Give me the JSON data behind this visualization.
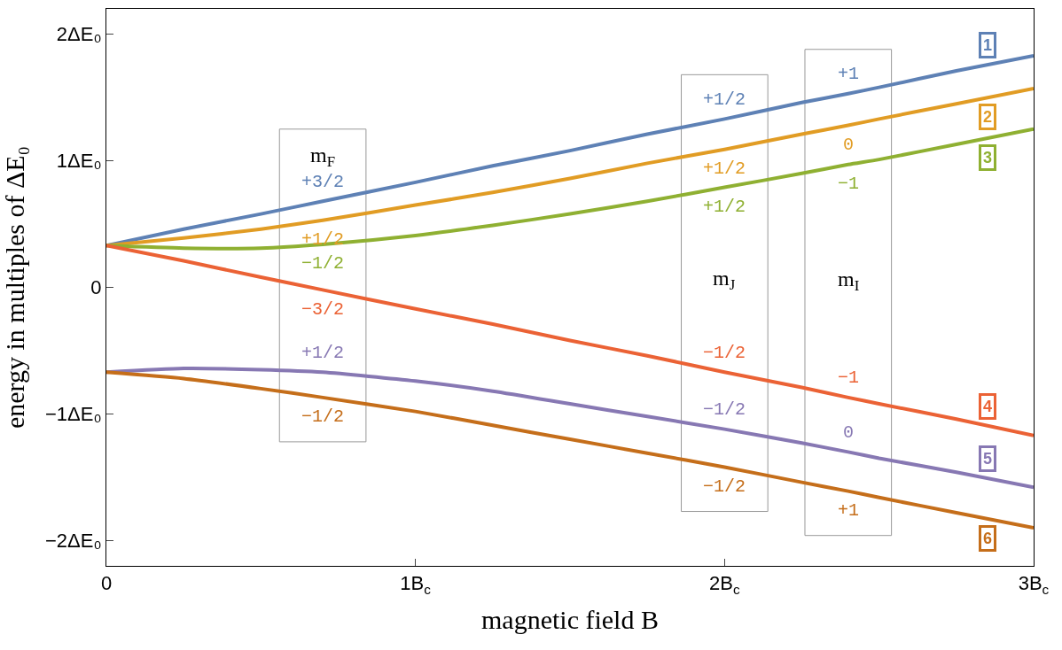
{
  "chart_data": {
    "type": "line",
    "xlabel": "magnetic field B",
    "ylabel": "energy in multiples of ΔE₀",
    "x": [
      0,
      0.25,
      0.5,
      0.7,
      1,
      1.25,
      1.5,
      1.75,
      2,
      2.25,
      2.4,
      2.5,
      2.75,
      3
    ],
    "series": [
      {
        "name": "1",
        "color": "#5e81b5",
        "values": [
          0.33,
          0.46,
          0.58,
          0.68,
          0.83,
          0.96,
          1.08,
          1.21,
          1.33,
          1.46,
          1.53,
          1.58,
          1.71,
          1.83
        ]
      },
      {
        "name": "2",
        "color": "#e19c24",
        "values": [
          0.33,
          0.39,
          0.46,
          0.53,
          0.65,
          0.75,
          0.86,
          0.98,
          1.09,
          1.21,
          1.28,
          1.33,
          1.45,
          1.57
        ]
      },
      {
        "name": "3",
        "color": "#8fb032",
        "values": [
          0.33,
          0.31,
          0.31,
          0.34,
          0.41,
          0.49,
          0.58,
          0.68,
          0.79,
          0.9,
          0.97,
          1.01,
          1.13,
          1.25
        ]
      },
      {
        "name": "4",
        "color": "#eb6235",
        "values": [
          0.33,
          0.21,
          0.08,
          -0.02,
          -0.17,
          -0.29,
          -0.42,
          -0.54,
          -0.67,
          -0.79,
          -0.87,
          -0.92,
          -1.04,
          -1.17
        ]
      },
      {
        "name": "5",
        "color": "#8778b3",
        "values": [
          -0.67,
          -0.64,
          -0.65,
          -0.67,
          -0.74,
          -0.82,
          -0.92,
          -1.02,
          -1.12,
          -1.23,
          -1.3,
          -1.35,
          -1.46,
          -1.58
        ]
      },
      {
        "name": "6",
        "color": "#c56e1a",
        "values": [
          -0.67,
          -0.72,
          -0.8,
          -0.87,
          -0.98,
          -1.09,
          -1.2,
          -1.31,
          -1.42,
          -1.54,
          -1.61,
          -1.66,
          -1.78,
          -1.9
        ]
      }
    ],
    "annotations": [
      "m$_{F}$",
      "m$_{J}$",
      "m$_{I}$",
      {
        "text": "+3/2",
        "x": 0.7,
        "y": 0.68
      },
      {
        "text": "+1/2",
        "x": 0.7,
        "y": 0.53
      },
      {
        "text": "−1/2",
        "x": 0.7,
        "y": 0.34
      },
      {
        "text": "−3/2",
        "x": 0.7,
        "y": -0.02
      },
      {
        "text": "+1/2",
        "x": 0.7,
        "y": -0.67
      },
      {
        "text": "−1/2",
        "x": 0.7,
        "y": -0.87
      },
      {
        "text": "+1/2",
        "x": 2,
        "y": 1.33
      },
      {
        "text": "+1/2",
        "x": 2,
        "y": 1.09
      },
      {
        "text": "+1/2",
        "x": 2,
        "y": 0.79
      },
      {
        "text": "−1/2",
        "x": 2,
        "y": -0.67
      },
      {
        "text": "−1/2",
        "x": 2,
        "y": -1.12
      },
      {
        "text": "−1/2",
        "x": 2,
        "y": -1.42
      },
      {
        "text": "+1",
        "x": 2.4,
        "y": 1.53
      },
      {
        "text": "0",
        "x": 2.4,
        "y": 1.28
      },
      {
        "text": "−1",
        "x": 2.4,
        "y": 0.97
      },
      {
        "text": "−1",
        "x": 2.4,
        "y": -0.87
      },
      {
        "text": "0",
        "x": 2.4,
        "y": -1.3
      },
      {
        "text": "+1",
        "x": 2.4,
        "y": -1.61
      }
    ],
    "xlim": [
      0,
      3
    ],
    "ylim": [
      -2.2,
      2.2
    ],
    "xticks": [
      0,
      {
        "value": 1,
        "label": "1B$_{c}$"
      },
      {
        "value": 2,
        "label": "2B$_{c}$"
      },
      {
        "value": 3,
        "label": "3B$_{c}$"
      }
    ],
    "yticks": [
      {
        "value": -2,
        "label": "−2ΔE₀"
      },
      {
        "value": -1,
        "label": "−1ΔE₀"
      },
      0,
      {
        "value": 1,
        "label": "1ΔE₀"
      },
      {
        "value": 2,
        "label": "2ΔE₀"
      }
    ],
    "grid": false,
    "legend": "right",
    "marker": "none",
    "line_style": "solid"
  }
}
